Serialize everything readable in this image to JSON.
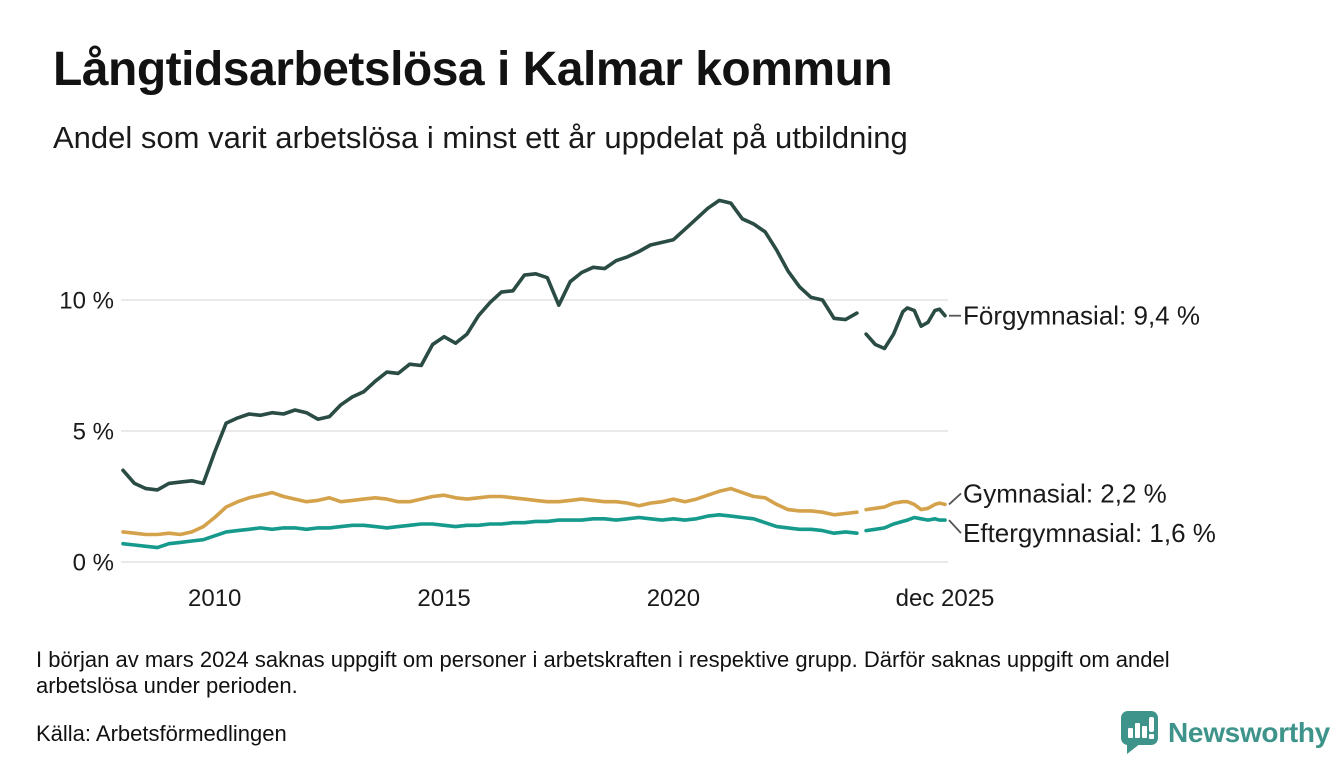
{
  "header": {
    "title": "Långtidsarbetslösa i Kalmar kommun",
    "subtitle": "Andel som varit arbetslösa i minst ett år uppdelat på utbildning"
  },
  "notes": {
    "footnote": "I början av mars 2024 saknas uppgift om personer i arbetskraften i respektive grupp. Därför saknas uppgift om andel arbetslösa under perioden.",
    "source": "Källa: Arbetsförmedlingen"
  },
  "branding": {
    "logo_text": "Newsworthy",
    "logo_color": "#3e948b",
    "logo_icon": "bar-chart-speech-bubble"
  },
  "chart_data": {
    "type": "line",
    "title": "Långtidsarbetslösa i Kalmar kommun",
    "xlabel": "",
    "ylabel": "",
    "grid": "horizontal",
    "grid_color": "#e2e2e2",
    "axis_color": "#1a1a1a",
    "label_color": "#1a1a1a",
    "connector_color": "#555555",
    "x_range": [
      2008.0,
      2025.92
    ],
    "ylim": [
      0,
      14.8
    ],
    "y_ticks": [
      {
        "v": 0,
        "label": "0 %"
      },
      {
        "v": 5,
        "label": "5 %"
      },
      {
        "v": 10,
        "label": "10 %"
      }
    ],
    "x_ticks": [
      {
        "v": 2010,
        "label": "2010"
      },
      {
        "v": 2015,
        "label": "2015"
      },
      {
        "v": 2020,
        "label": "2020"
      },
      {
        "v": 2025.92,
        "label": "dec 2025"
      }
    ],
    "gap_note": "values are null where data is missing (early 2024)",
    "x": [
      2008.0,
      2008.25,
      2008.5,
      2008.75,
      2009.0,
      2009.25,
      2009.5,
      2009.75,
      2010.0,
      2010.25,
      2010.5,
      2010.75,
      2011.0,
      2011.25,
      2011.5,
      2011.75,
      2012.0,
      2012.25,
      2012.5,
      2012.75,
      2013.0,
      2013.25,
      2013.5,
      2013.75,
      2014.0,
      2014.25,
      2014.5,
      2014.75,
      2015.0,
      2015.25,
      2015.5,
      2015.75,
      2016.0,
      2016.25,
      2016.5,
      2016.75,
      2017.0,
      2017.25,
      2017.5,
      2017.75,
      2018.0,
      2018.25,
      2018.5,
      2018.75,
      2019.0,
      2019.25,
      2019.5,
      2019.75,
      2020.0,
      2020.25,
      2020.5,
      2020.75,
      2021.0,
      2021.25,
      2021.5,
      2021.75,
      2022.0,
      2022.25,
      2022.5,
      2022.75,
      2023.0,
      2023.25,
      2023.5,
      2023.75,
      2024.0,
      2024.1,
      2024.2,
      2024.4,
      2024.6,
      2024.8,
      2025.0,
      2025.1,
      2025.25,
      2025.4,
      2025.55,
      2025.7,
      2025.8,
      2025.92
    ],
    "series": [
      {
        "name": "Förgymnasial",
        "end_label": "Förgymnasial: 9,4 %",
        "end_value_pct": 9.4,
        "color": "#2a4c44",
        "y": [
          3.5,
          3.0,
          2.8,
          2.75,
          3.0,
          3.05,
          3.1,
          3.0,
          4.2,
          5.3,
          5.5,
          5.65,
          5.6,
          5.7,
          5.65,
          5.8,
          5.7,
          5.45,
          5.55,
          6.0,
          6.3,
          6.5,
          6.9,
          7.25,
          7.2,
          7.55,
          7.5,
          8.3,
          8.6,
          8.35,
          8.7,
          9.4,
          9.9,
          10.3,
          10.35,
          10.95,
          11.0,
          10.85,
          9.8,
          10.7,
          11.05,
          11.25,
          11.2,
          11.5,
          11.65,
          11.85,
          12.1,
          12.2,
          12.3,
          12.7,
          13.1,
          13.5,
          13.8,
          13.7,
          13.1,
          12.9,
          12.6,
          11.9,
          11.1,
          10.5,
          10.1,
          10.0,
          9.3,
          9.25,
          9.5,
          null,
          8.7,
          8.3,
          8.15,
          8.7,
          9.55,
          9.7,
          9.6,
          9.0,
          9.15,
          9.6,
          9.65,
          9.4
        ]
      },
      {
        "name": "Gymnasial",
        "end_label": "Gymnasial: 2,2 %",
        "end_value_pct": 2.2,
        "color": "#d5a24c",
        "y": [
          1.15,
          1.1,
          1.05,
          1.05,
          1.1,
          1.05,
          1.15,
          1.35,
          1.7,
          2.1,
          2.3,
          2.45,
          2.55,
          2.65,
          2.5,
          2.4,
          2.3,
          2.35,
          2.45,
          2.3,
          2.35,
          2.4,
          2.45,
          2.4,
          2.3,
          2.3,
          2.4,
          2.5,
          2.55,
          2.45,
          2.4,
          2.45,
          2.5,
          2.5,
          2.45,
          2.4,
          2.35,
          2.3,
          2.3,
          2.35,
          2.4,
          2.35,
          2.3,
          2.3,
          2.25,
          2.15,
          2.25,
          2.3,
          2.4,
          2.3,
          2.4,
          2.55,
          2.7,
          2.8,
          2.65,
          2.5,
          2.45,
          2.2,
          2.0,
          1.95,
          1.95,
          1.9,
          1.8,
          1.85,
          1.9,
          null,
          2.0,
          2.05,
          2.1,
          2.25,
          2.3,
          2.3,
          2.2,
          2.0,
          2.05,
          2.2,
          2.25,
          2.2
        ]
      },
      {
        "name": "Eftergymnasial",
        "end_label": "Eftergymnasial: 1,6 %",
        "end_value_pct": 1.6,
        "color": "#169a8c",
        "y": [
          0.7,
          0.65,
          0.6,
          0.55,
          0.7,
          0.75,
          0.8,
          0.85,
          1.0,
          1.15,
          1.2,
          1.25,
          1.3,
          1.25,
          1.3,
          1.3,
          1.25,
          1.3,
          1.3,
          1.35,
          1.4,
          1.4,
          1.35,
          1.3,
          1.35,
          1.4,
          1.45,
          1.45,
          1.4,
          1.35,
          1.4,
          1.4,
          1.45,
          1.45,
          1.5,
          1.5,
          1.55,
          1.55,
          1.6,
          1.6,
          1.6,
          1.65,
          1.65,
          1.6,
          1.65,
          1.7,
          1.65,
          1.6,
          1.65,
          1.6,
          1.65,
          1.75,
          1.8,
          1.75,
          1.7,
          1.65,
          1.5,
          1.35,
          1.3,
          1.25,
          1.25,
          1.2,
          1.1,
          1.15,
          1.1,
          null,
          1.2,
          1.25,
          1.3,
          1.45,
          1.55,
          1.6,
          1.7,
          1.65,
          1.6,
          1.65,
          1.6,
          1.6
        ]
      }
    ]
  }
}
